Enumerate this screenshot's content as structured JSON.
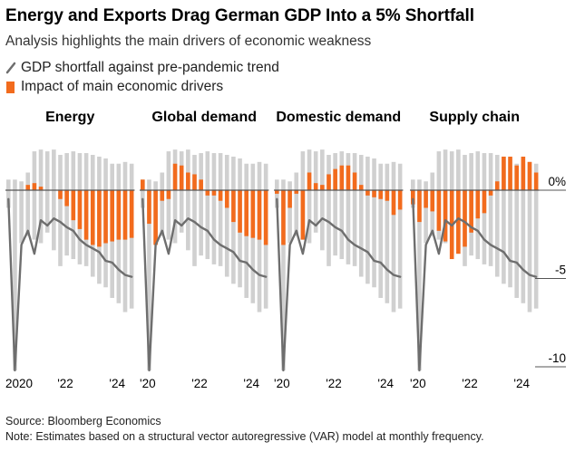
{
  "title": "Energy and Exports Drag German GDP Into a 5% Shortfall",
  "subtitle": "Analysis highlights the main drivers of economic weakness",
  "legend": {
    "line_label": "GDP shortfall against pre-pandemic trend",
    "bar_label": "Impact of main economic drivers"
  },
  "footer": {
    "source": "Source: Bloomberg Economics",
    "note": "Note: Estimates based on a structural vector autoregressive (VAR) model at monthly frequency."
  },
  "colors": {
    "driver_bar": "#f26b1d",
    "other_bar": "#d0d0d0",
    "gdp_line": "#6e6e6e",
    "zero_line": "#555555"
  },
  "chart_data": {
    "type": "bar",
    "periods": [
      "2020-Q1",
      "2020-Q2",
      "2020-Q3",
      "2020-Q4",
      "2021-Q1",
      "2021-Q2",
      "2021-Q3",
      "2021-Q4",
      "2022-Q1",
      "2022-Q2",
      "2022-Q3",
      "2022-Q4",
      "2023-Q1",
      "2023-Q2",
      "2023-Q3",
      "2023-Q4",
      "2024-Q1",
      "2024-Q2",
      "2024-Q3",
      "2024-Q4"
    ],
    "ylim": [
      -10.5,
      2.5
    ],
    "y_ticks": [
      {
        "value": 0,
        "label": "0%"
      },
      {
        "value": -5,
        "label": "-5"
      },
      {
        "value": -10,
        "label": "-10"
      }
    ],
    "gdp_shortfall": [
      -0.5,
      -10.2,
      -3.1,
      -2.3,
      -3.6,
      -1.7,
      -2.0,
      -1.6,
      -1.8,
      -2.1,
      -2.3,
      -2.8,
      -3.1,
      -3.3,
      -3.5,
      -4.0,
      -4.1,
      -4.5,
      -4.8,
      -4.9
    ],
    "gray_bars": [
      {
        "up": 0.6,
        "down": -1.0
      },
      {
        "up": 0.6,
        "down": -10.2
      },
      {
        "up": 0.5,
        "down": -3.0
      },
      {
        "up": 1.0,
        "down": -2.6
      },
      {
        "up": 2.2,
        "down": -2.8
      },
      {
        "up": 2.3,
        "down": -3.0
      },
      {
        "up": 2.2,
        "down": -2.4
      },
      {
        "up": 2.3,
        "down": -3.4
      },
      {
        "up": 2.0,
        "down": -4.3
      },
      {
        "up": 2.1,
        "down": -3.7
      },
      {
        "up": 2.2,
        "down": -3.9
      },
      {
        "up": 2.1,
        "down": -4.2
      },
      {
        "up": 2.1,
        "down": -4.3
      },
      {
        "up": 2.0,
        "down": -4.9
      },
      {
        "up": 1.9,
        "down": -5.3
      },
      {
        "up": 1.8,
        "down": -5.5
      },
      {
        "up": 1.5,
        "down": -6.1
      },
      {
        "up": 1.5,
        "down": -6.4
      },
      {
        "up": 1.6,
        "down": -6.9
      },
      {
        "up": 1.5,
        "down": -6.7
      }
    ],
    "panels": [
      {
        "name": "Energy",
        "x_tick_labels": [
          {
            "index": 0,
            "label": "2020"
          },
          {
            "index": 8,
            "label": "'22"
          },
          {
            "index": 16,
            "label": "'24"
          }
        ],
        "driver_values": [
          0.0,
          0.0,
          0.0,
          0.3,
          0.4,
          0.2,
          0.0,
          0.0,
          -0.5,
          -0.9,
          -1.7,
          -2.2,
          -2.8,
          -3.1,
          -3.2,
          -3.0,
          -2.9,
          -2.8,
          -2.8,
          -2.7
        ]
      },
      {
        "name": "Global demand",
        "x_tick_labels": [
          {
            "index": 0,
            "label": "'20"
          },
          {
            "index": 8,
            "label": "'22"
          },
          {
            "index": 16,
            "label": "'24"
          }
        ],
        "driver_values": [
          0.6,
          -1.9,
          -3.1,
          -0.6,
          -0.5,
          1.5,
          1.4,
          1.0,
          0.9,
          0.6,
          -0.3,
          -0.3,
          -0.6,
          -1.0,
          -1.8,
          -2.4,
          -2.6,
          -2.7,
          -2.8,
          -3.1
        ]
      },
      {
        "name": "Domestic demand",
        "x_tick_labels": [
          {
            "index": 0,
            "label": "'20"
          },
          {
            "index": 8,
            "label": "'22"
          },
          {
            "index": 16,
            "label": "'24"
          }
        ],
        "driver_values": [
          -0.2,
          -3.1,
          -1.0,
          -0.2,
          -2.8,
          1.0,
          0.4,
          0.3,
          0.9,
          1.2,
          1.4,
          1.4,
          1.0,
          0.3,
          -0.3,
          -0.4,
          -0.5,
          -0.6,
          -1.4,
          -1.1
        ]
      },
      {
        "name": "Supply chain",
        "x_tick_labels": [
          {
            "index": 0,
            "label": "'20"
          },
          {
            "index": 8,
            "label": "'22"
          },
          {
            "index": 16,
            "label": "'24"
          }
        ],
        "driver_values": [
          -0.8,
          -1.8,
          -1.0,
          -1.2,
          -2.3,
          -2.9,
          -3.9,
          -3.6,
          -3.2,
          -2.4,
          -1.6,
          -1.3,
          -0.3,
          0.5,
          1.9,
          1.9,
          1.4,
          1.9,
          1.6,
          1.0
        ]
      }
    ]
  }
}
